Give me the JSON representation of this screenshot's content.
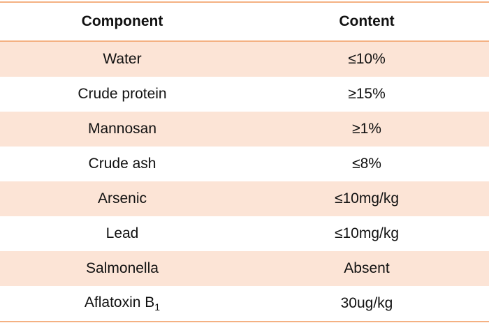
{
  "table": {
    "header": [
      "Component",
      "Content"
    ],
    "rows": [
      [
        "Water",
        "≤10%"
      ],
      [
        "Crude protein",
        "≥15%"
      ],
      [
        "Mannosan",
        "≥1%"
      ],
      [
        "Crude ash",
        "≤8%"
      ],
      [
        "Arsenic",
        "≤10mg/kg"
      ],
      [
        "Lead",
        "≤10mg/kg"
      ],
      [
        "Salmonella",
        "Absent"
      ],
      [
        {
          "text": "Aflatoxin B",
          "subscript": "1"
        },
        "30ug/kg"
      ]
    ]
  }
}
